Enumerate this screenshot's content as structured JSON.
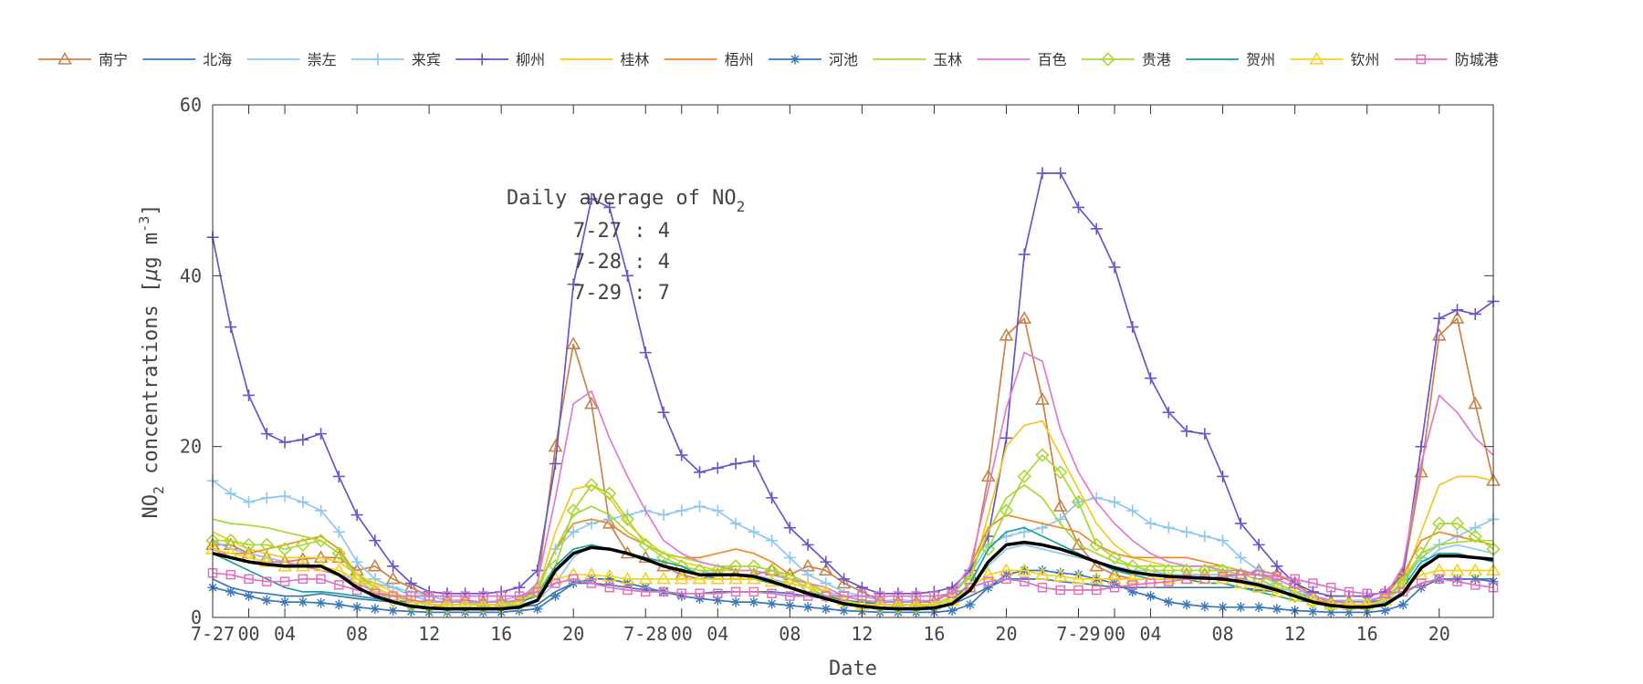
{
  "chart_data": {
    "type": "line",
    "xlabel": "Date",
    "ylabel_main": "NO",
    "ylabel_sub": "2",
    "ylabel_rest": " concentrations [",
    "ylabel_mu": "μ",
    "ylabel_unit": "g m",
    "ylabel_sup": "-3",
    "ylabel_end": "]",
    "ylim": [
      0,
      60
    ],
    "yticks": [
      0,
      20,
      40,
      60
    ],
    "xlim": [
      0,
      71
    ],
    "xticks": [
      {
        "x": 0,
        "label": "7-27"
      },
      {
        "x": 2,
        "label": "00"
      },
      {
        "x": 4,
        "label": "04"
      },
      {
        "x": 8,
        "label": "08"
      },
      {
        "x": 12,
        "label": "12"
      },
      {
        "x": 16,
        "label": "16"
      },
      {
        "x": 20,
        "label": "20"
      },
      {
        "x": 24,
        "label": "7-28"
      },
      {
        "x": 26,
        "label": "00"
      },
      {
        "x": 28,
        "label": "04"
      },
      {
        "x": 32,
        "label": "08"
      },
      {
        "x": 36,
        "label": "12"
      },
      {
        "x": 40,
        "label": "16"
      },
      {
        "x": 44,
        "label": "20"
      },
      {
        "x": 48,
        "label": "7-29"
      },
      {
        "x": 50,
        "label": "00"
      },
      {
        "x": 52,
        "label": "04"
      },
      {
        "x": 56,
        "label": "08"
      },
      {
        "x": 60,
        "label": "12"
      },
      {
        "x": 64,
        "label": "16"
      },
      {
        "x": 68,
        "label": "20"
      }
    ],
    "annotation": {
      "title_main": "Daily average of NO",
      "title_sub": "2",
      "lines": [
        "7-27 : 4",
        "7-28 : 4",
        "7-29 : 7"
      ]
    },
    "legend_position": "top",
    "series": [
      {
        "name": "南宁",
        "color": "#c8844a",
        "marker": "triangle",
        "values": [
          8.5,
          8.5,
          7.5,
          7.0,
          6.5,
          6.8,
          7.0,
          7.0,
          5.5,
          6.0,
          4.5,
          3.5,
          2.5,
          2.0,
          2.0,
          1.8,
          1.8,
          2.0,
          3.5,
          20.0,
          32.0,
          25.0,
          11.0,
          7.5,
          7.0,
          6.0,
          5.0,
          4.5,
          5.0,
          5.0,
          5.0,
          5.5,
          5.0,
          6.0,
          5.5,
          4.0,
          3.0,
          2.0,
          1.8,
          1.8,
          1.8,
          3.0,
          5.0,
          16.5,
          33.0,
          35.0,
          25.5,
          13.0,
          8.5,
          6.0,
          5.0,
          4.5,
          4.5,
          4.5,
          5.0,
          5.0,
          5.0,
          5.0,
          5.5,
          5.0,
          4.0,
          2.5,
          1.8,
          1.8,
          1.8,
          2.5,
          5.0,
          17.0,
          33.0,
          35.0,
          25.0,
          16.0
        ]
      },
      {
        "name": "北海",
        "color": "#3a78b8",
        "marker": "none",
        "values": [
          4.5,
          3.5,
          3.0,
          2.8,
          2.5,
          2.5,
          2.8,
          2.5,
          2.2,
          2.0,
          1.8,
          1.5,
          1.2,
          1.2,
          1.2,
          1.2,
          1.2,
          1.2,
          1.5,
          3.0,
          4.0,
          4.0,
          3.8,
          3.5,
          3.2,
          3.0,
          2.8,
          2.8,
          3.0,
          3.0,
          3.0,
          3.0,
          2.8,
          2.5,
          2.2,
          1.8,
          1.5,
          1.2,
          1.2,
          1.2,
          1.2,
          1.5,
          2.5,
          3.5,
          4.5,
          4.5,
          4.5,
          4.2,
          4.0,
          3.8,
          3.5,
          3.5,
          3.5,
          3.5,
          3.5,
          3.5,
          3.5,
          3.5,
          3.2,
          3.0,
          2.8,
          2.5,
          2.0,
          1.8,
          1.8,
          2.0,
          2.8,
          4.0,
          4.5,
          4.5,
          4.5,
          4.5
        ]
      },
      {
        "name": "崇左",
        "color": "#8ec8ef",
        "marker": "none",
        "values": [
          9.0,
          8.0,
          7.5,
          7.0,
          6.5,
          6.0,
          5.5,
          5.0,
          4.5,
          4.0,
          3.5,
          3.0,
          2.5,
          2.0,
          1.8,
          1.5,
          1.5,
          1.5,
          2.0,
          4.0,
          7.0,
          8.5,
          8.0,
          7.5,
          7.0,
          6.5,
          6.0,
          5.5,
          5.0,
          5.0,
          5.0,
          4.5,
          4.0,
          3.5,
          3.0,
          2.5,
          2.0,
          1.5,
          1.5,
          1.5,
          1.5,
          2.0,
          3.5,
          6.0,
          8.0,
          8.5,
          8.0,
          7.5,
          7.0,
          6.5,
          6.0,
          5.5,
          5.5,
          5.0,
          5.0,
          5.0,
          5.0,
          4.5,
          4.0,
          3.5,
          3.0,
          2.5,
          2.0,
          1.5,
          1.5,
          1.8,
          3.0,
          6.0,
          8.0,
          8.5,
          8.0,
          7.5
        ]
      },
      {
        "name": "来宾",
        "color": "#8ec8ef",
        "marker": "plus",
        "values": [
          16.0,
          14.5,
          13.5,
          14.0,
          14.2,
          13.5,
          12.5,
          10.0,
          6.5,
          4.5,
          3.5,
          2.5,
          2.0,
          1.8,
          1.8,
          1.8,
          2.0,
          2.5,
          3.5,
          8.0,
          10.0,
          11.0,
          11.5,
          12.0,
          12.5,
          12.0,
          12.5,
          13.0,
          12.5,
          11.0,
          10.0,
          9.0,
          7.0,
          5.0,
          4.0,
          3.0,
          2.5,
          2.0,
          2.0,
          2.0,
          2.0,
          3.0,
          5.0,
          8.5,
          9.5,
          10.0,
          10.5,
          11.5,
          13.5,
          14.0,
          13.5,
          12.5,
          11.0,
          10.5,
          10.0,
          9.5,
          9.0,
          7.0,
          5.5,
          4.0,
          3.0,
          2.5,
          2.0,
          2.0,
          2.0,
          2.5,
          4.0,
          7.0,
          8.5,
          9.5,
          10.5,
          11.5
        ]
      },
      {
        "name": "柳州",
        "color": "#6a55c9",
        "marker": "plus",
        "values": [
          44.5,
          34.0,
          26.0,
          21.5,
          20.5,
          20.8,
          21.5,
          16.5,
          12.0,
          9.0,
          6.0,
          4.0,
          3.0,
          2.8,
          2.8,
          2.8,
          3.0,
          3.5,
          5.5,
          18.0,
          39.0,
          49.0,
          48.0,
          40.0,
          31.0,
          24.0,
          19.0,
          17.0,
          17.5,
          18.0,
          18.3,
          14.0,
          10.5,
          8.5,
          6.5,
          4.5,
          3.5,
          2.8,
          2.8,
          2.8,
          3.0,
          3.5,
          5.5,
          9.5,
          21.0,
          42.5,
          52.0,
          52.0,
          48.0,
          45.5,
          41.0,
          34.0,
          28.0,
          24.0,
          21.8,
          21.5,
          16.5,
          11.0,
          8.5,
          6.0,
          4.0,
          3.0,
          2.5,
          2.5,
          2.5,
          3.0,
          5.0,
          20.0,
          35.0,
          36.0,
          35.5,
          37.0
        ]
      },
      {
        "name": "桂林",
        "color": "#f4c81f",
        "marker": "none",
        "values": [
          10.0,
          9.0,
          8.0,
          7.5,
          7.0,
          7.0,
          7.0,
          6.5,
          5.0,
          4.0,
          3.0,
          2.0,
          1.5,
          1.2,
          1.2,
          1.2,
          1.2,
          1.5,
          3.0,
          10.0,
          15.0,
          15.5,
          14.0,
          11.0,
          9.0,
          7.5,
          6.5,
          6.0,
          5.5,
          5.5,
          5.5,
          5.0,
          4.5,
          4.0,
          3.0,
          2.0,
          1.5,
          1.2,
          1.2,
          1.2,
          1.5,
          2.0,
          4.0,
          12.0,
          20.0,
          22.5,
          23.0,
          19.0,
          15.0,
          11.0,
          8.5,
          7.0,
          6.5,
          6.0,
          6.0,
          6.0,
          6.0,
          5.5,
          5.0,
          4.0,
          3.0,
          2.0,
          1.5,
          1.5,
          1.5,
          2.0,
          4.0,
          10.0,
          15.5,
          16.5,
          16.5,
          16.0
        ]
      },
      {
        "name": "梧州",
        "color": "#f08a24",
        "marker": "none",
        "values": [
          7.5,
          7.5,
          7.5,
          8.0,
          8.5,
          9.0,
          9.5,
          8.0,
          5.0,
          3.5,
          2.5,
          2.0,
          1.8,
          1.8,
          1.8,
          1.8,
          1.8,
          2.0,
          3.0,
          8.0,
          11.0,
          11.5,
          11.0,
          9.5,
          8.5,
          7.5,
          7.0,
          7.0,
          7.5,
          8.0,
          7.5,
          6.5,
          5.0,
          4.0,
          3.0,
          2.0,
          1.8,
          1.8,
          1.8,
          1.8,
          2.0,
          3.0,
          6.0,
          10.5,
          12.0,
          11.5,
          11.0,
          10.5,
          10.0,
          8.5,
          7.5,
          7.0,
          7.0,
          7.0,
          7.0,
          6.5,
          6.0,
          5.5,
          5.0,
          4.0,
          3.0,
          2.0,
          1.8,
          1.8,
          1.8,
          2.5,
          5.0,
          9.0,
          10.0,
          9.5,
          9.0,
          8.5
        ]
      },
      {
        "name": "河池",
        "color": "#3a78b8",
        "marker": "asterisk",
        "values": [
          3.5,
          3.0,
          2.5,
          2.0,
          1.8,
          1.8,
          1.7,
          1.5,
          1.2,
          1.0,
          0.8,
          0.7,
          0.6,
          0.6,
          0.6,
          0.6,
          0.6,
          0.8,
          1.0,
          2.5,
          4.0,
          4.5,
          4.5,
          4.0,
          3.5,
          3.0,
          2.5,
          2.2,
          2.0,
          1.8,
          1.8,
          1.6,
          1.4,
          1.2,
          1.0,
          0.8,
          0.7,
          0.6,
          0.6,
          0.6,
          0.6,
          0.8,
          1.5,
          3.5,
          5.0,
          5.5,
          5.5,
          5.2,
          5.0,
          4.5,
          4.0,
          3.0,
          2.5,
          1.8,
          1.5,
          1.3,
          1.2,
          1.2,
          1.2,
          1.0,
          0.8,
          0.7,
          0.6,
          0.6,
          0.6,
          0.8,
          1.5,
          3.5,
          4.5,
          4.5,
          4.5,
          4.2
        ]
      },
      {
        "name": "玉林",
        "color": "#a8d832",
        "marker": "none",
        "values": [
          11.5,
          11.0,
          10.8,
          10.5,
          10.0,
          9.5,
          9.0,
          7.5,
          5.0,
          3.5,
          2.5,
          2.0,
          1.5,
          1.5,
          1.5,
          1.5,
          1.5,
          2.0,
          3.0,
          8.0,
          12.0,
          13.0,
          12.0,
          10.0,
          8.5,
          7.5,
          7.0,
          6.5,
          6.0,
          6.0,
          6.0,
          5.5,
          5.0,
          4.0,
          3.0,
          2.0,
          1.5,
          1.5,
          1.5,
          1.5,
          1.5,
          2.5,
          5.0,
          10.0,
          14.0,
          15.5,
          14.0,
          11.0,
          8.5,
          7.5,
          6.5,
          6.0,
          6.0,
          6.0,
          6.0,
          6.0,
          6.0,
          5.5,
          5.0,
          4.0,
          3.0,
          2.0,
          1.5,
          1.5,
          1.5,
          2.0,
          4.5,
          7.5,
          8.5,
          8.8,
          9.0,
          9.0
        ]
      },
      {
        "name": "百色",
        "color": "#e07ad0",
        "marker": "none",
        "values": [
          8.0,
          7.0,
          6.5,
          6.5,
          6.5,
          6.0,
          5.5,
          5.0,
          4.0,
          3.0,
          2.5,
          2.0,
          1.8,
          1.8,
          1.8,
          1.8,
          1.8,
          2.0,
          4.0,
          14.0,
          25.0,
          26.5,
          21.0,
          16.5,
          12.5,
          9.0,
          7.5,
          6.5,
          6.0,
          5.5,
          5.5,
          5.0,
          4.5,
          4.0,
          3.5,
          2.5,
          2.0,
          1.8,
          1.8,
          1.8,
          2.0,
          3.0,
          6.0,
          15.0,
          24.5,
          31.0,
          30.0,
          22.0,
          17.0,
          13.5,
          11.0,
          9.0,
          7.5,
          6.5,
          6.0,
          6.0,
          5.5,
          5.5,
          5.0,
          4.5,
          3.5,
          2.5,
          2.0,
          1.8,
          1.8,
          2.5,
          6.0,
          18.0,
          26.0,
          24.0,
          21.0,
          19.0
        ]
      },
      {
        "name": "贵港",
        "color": "#a8d832",
        "marker": "diamond",
        "values": [
          9.0,
          9.0,
          8.5,
          8.5,
          8.0,
          8.5,
          9.0,
          7.5,
          4.5,
          3.0,
          2.0,
          1.5,
          1.2,
          1.2,
          1.2,
          1.2,
          1.2,
          1.5,
          3.0,
          6.0,
          12.5,
          15.5,
          14.5,
          11.5,
          8.5,
          7.0,
          6.0,
          5.5,
          5.5,
          6.0,
          6.0,
          5.5,
          4.5,
          3.5,
          2.5,
          1.8,
          1.5,
          1.2,
          1.2,
          1.2,
          1.5,
          2.0,
          4.0,
          8.0,
          12.5,
          16.5,
          19.0,
          17.0,
          13.5,
          8.5,
          7.0,
          6.0,
          5.5,
          5.5,
          5.5,
          5.5,
          5.5,
          5.0,
          4.5,
          3.5,
          2.5,
          1.8,
          1.5,
          1.5,
          1.5,
          2.0,
          4.0,
          7.5,
          11.0,
          11.0,
          9.5,
          8.0
        ]
      },
      {
        "name": "贺州",
        "color": "#1ba19a",
        "marker": "none",
        "values": [
          7.5,
          6.5,
          5.5,
          4.5,
          3.5,
          3.0,
          3.0,
          2.8,
          2.5,
          2.2,
          2.0,
          1.8,
          1.5,
          1.5,
          1.5,
          1.5,
          1.5,
          1.8,
          2.5,
          6.0,
          8.0,
          8.5,
          8.0,
          7.5,
          7.0,
          6.5,
          6.0,
          5.0,
          4.5,
          4.5,
          4.5,
          4.0,
          3.5,
          3.0,
          2.5,
          2.0,
          1.8,
          1.5,
          1.5,
          1.5,
          1.5,
          2.0,
          4.0,
          8.0,
          10.0,
          10.5,
          9.5,
          8.5,
          7.5,
          6.5,
          5.5,
          5.0,
          4.5,
          4.5,
          4.5,
          4.0,
          4.0,
          3.5,
          3.0,
          2.5,
          2.0,
          1.8,
          1.5,
          1.5,
          1.5,
          2.0,
          3.5,
          6.5,
          7.5,
          7.5,
          7.0,
          6.5
        ]
      },
      {
        "name": "钦州",
        "color": "#f4d21e",
        "marker": "triangle",
        "values": [
          8.0,
          7.5,
          7.0,
          6.5,
          6.0,
          6.0,
          6.0,
          5.5,
          4.5,
          3.5,
          2.5,
          1.8,
          1.5,
          1.5,
          1.5,
          1.5,
          1.5,
          1.8,
          3.0,
          4.5,
          5.0,
          5.0,
          4.8,
          4.5,
          4.5,
          4.5,
          4.5,
          4.5,
          4.5,
          4.5,
          4.5,
          4.2,
          4.0,
          3.5,
          3.0,
          2.0,
          1.5,
          1.5,
          1.5,
          1.5,
          1.5,
          2.0,
          3.5,
          5.0,
          5.5,
          5.5,
          5.0,
          4.8,
          4.5,
          4.5,
          4.5,
          4.5,
          4.5,
          4.5,
          4.5,
          4.5,
          4.5,
          4.0,
          3.5,
          3.0,
          2.5,
          2.0,
          1.5,
          1.5,
          1.5,
          2.0,
          3.5,
          5.0,
          5.5,
          5.5,
          5.5,
          5.5
        ]
      },
      {
        "name": "防城港",
        "color": "#e070c0",
        "marker": "square",
        "values": [
          5.2,
          5.0,
          4.5,
          4.2,
          4.2,
          4.5,
          4.5,
          3.8,
          3.2,
          2.8,
          2.5,
          2.5,
          2.5,
          2.5,
          2.5,
          2.5,
          2.5,
          2.5,
          3.0,
          4.0,
          4.5,
          4.0,
          3.5,
          3.2,
          3.0,
          3.0,
          2.8,
          2.8,
          2.8,
          3.0,
          3.0,
          2.8,
          2.5,
          2.5,
          2.5,
          2.5,
          2.5,
          2.5,
          2.5,
          2.5,
          2.5,
          2.8,
          3.5,
          4.2,
          4.5,
          4.2,
          3.5,
          3.2,
          3.2,
          3.2,
          3.5,
          3.8,
          4.0,
          4.2,
          4.5,
          4.5,
          4.8,
          5.0,
          5.0,
          4.8,
          4.5,
          4.0,
          3.5,
          3.0,
          2.8,
          2.8,
          3.0,
          4.0,
          4.5,
          4.2,
          3.8,
          3.5
        ]
      }
    ],
    "average": {
      "color": "#000000",
      "values": [
        7.5,
        7.0,
        6.5,
        6.2,
        6.0,
        6.0,
        6.0,
        5.0,
        3.5,
        2.5,
        1.8,
        1.3,
        1.1,
        1.0,
        1.0,
        1.0,
        1.0,
        1.2,
        2.0,
        5.5,
        7.5,
        8.2,
        8.0,
        7.5,
        6.8,
        6.0,
        5.5,
        5.0,
        5.0,
        5.0,
        4.8,
        4.2,
        3.5,
        2.8,
        2.2,
        1.6,
        1.3,
        1.1,
        1.0,
        1.0,
        1.1,
        1.6,
        3.2,
        6.5,
        8.5,
        8.8,
        8.5,
        8.0,
        7.3,
        6.5,
        5.8,
        5.3,
        5.0,
        4.8,
        4.7,
        4.6,
        4.5,
        4.2,
        3.8,
        3.2,
        2.5,
        1.8,
        1.4,
        1.2,
        1.2,
        1.5,
        2.8,
        5.8,
        7.2,
        7.2,
        7.0,
        6.8
      ]
    }
  }
}
